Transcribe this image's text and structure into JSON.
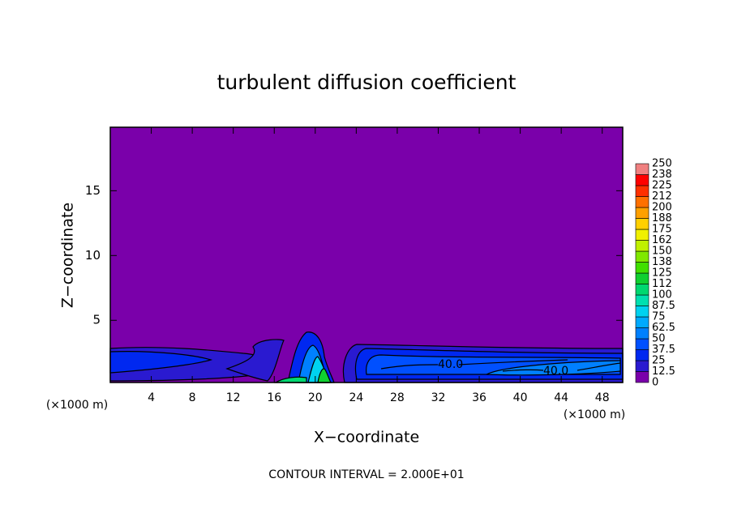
{
  "chart_data": {
    "type": "contour",
    "title": "turbulent diffusion coefficient",
    "x_label": "X−coordinate",
    "y_label": "Z−coordinate",
    "x_unit": "(×1000 m)",
    "footer": "CONTOUR INTERVAL = 2.000E+01",
    "xlim": [
      0,
      50
    ],
    "ylim": [
      0.2,
      19.9
    ],
    "xticks": [
      4,
      8,
      12,
      16,
      20,
      24,
      28,
      32,
      36,
      40,
      44,
      48
    ],
    "yticks": [
      5,
      10,
      15
    ],
    "levels": [
      0,
      12.5,
      25,
      37.5,
      50,
      62.5,
      75,
      87.5,
      100,
      {
        "value": 112.5,
        "label": "112"
      },
      125,
      {
        "value": 137.5,
        "label": "138"
      },
      150,
      {
        "value": 162.5,
        "label": "162"
      },
      175,
      {
        "value": 187.5,
        "label": "188"
      },
      200,
      {
        "value": 212.5,
        "label": "212"
      },
      225,
      {
        "value": 237.5,
        "label": "238"
      },
      250
    ],
    "colors": [
      "#7a00aa",
      "#2a1ad0",
      "#0028f0",
      "#0050ff",
      "#0080ff",
      "#00aaff",
      "#00d2f0",
      "#00e0b0",
      "#00d870",
      "#10d030",
      "#40e000",
      "#80e800",
      "#c0f000",
      "#f0f000",
      "#ffd000",
      "#ffa000",
      "#ff7000",
      "#ff3000",
      "#ff0000",
      "#f08080"
    ],
    "contour_labels": [
      {
        "value": 40,
        "label": "40.0"
      },
      {
        "value": 40,
        "label": "40.0"
      }
    ]
  }
}
